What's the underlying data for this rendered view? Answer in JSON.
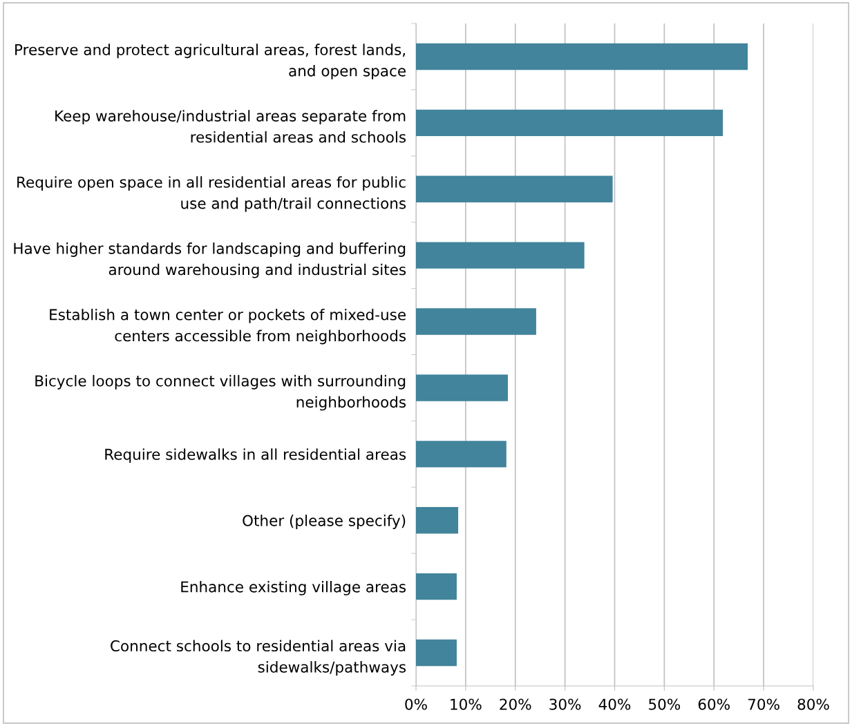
{
  "chart_data": {
    "type": "bar",
    "orientation": "horizontal",
    "categories": [
      "Preserve and protect agricultural areas, forest lands,\nand open space",
      "Keep warehouse/industrial areas separate from\nresidential areas and schools",
      "Require open space in all residential areas for public\nuse and path/trail connections",
      "Have higher standards for landscaping and buffering\naround warehousing and industrial sites",
      "Establish a town center or pockets of mixed-use\ncenters accessible from neighborhoods",
      "Bicycle loops to connect villages with surrounding\nneighborhoods",
      "Require sidewalks in all residential areas",
      "Other (please specify)",
      "Enhance existing village areas",
      "Connect schools to residential areas via\nsidewalks/pathways"
    ],
    "values": [
      66.8,
      61.8,
      39.6,
      33.9,
      24.2,
      18.5,
      18.2,
      8.5,
      8.2,
      8.2
    ],
    "color": "#41849b",
    "xlim": [
      0,
      80
    ],
    "xticks": [
      {
        "value": 0,
        "label": "0%"
      },
      {
        "value": 10,
        "label": "10%"
      },
      {
        "value": 20,
        "label": "20%"
      },
      {
        "value": 30,
        "label": "30%"
      },
      {
        "value": 40,
        "label": "40%"
      },
      {
        "value": 50,
        "label": "50%"
      },
      {
        "value": 60,
        "label": "60%"
      },
      {
        "value": 70,
        "label": "70%"
      },
      {
        "value": 80,
        "label": "80%"
      }
    ],
    "grid": "x"
  }
}
